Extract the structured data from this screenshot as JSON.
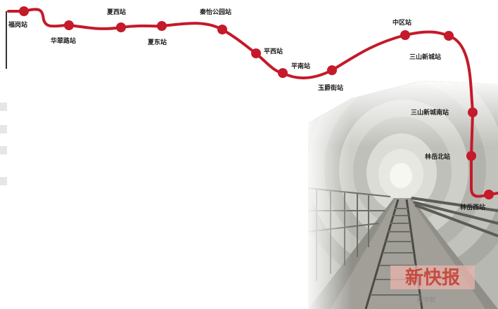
{
  "route": {
    "line_color": "#c41a2a",
    "stations": [
      {
        "id": "s1",
        "name": "福岗站"
      },
      {
        "id": "s2",
        "name": "华翠路站"
      },
      {
        "id": "s3",
        "name": "夏西站"
      },
      {
        "id": "s4",
        "name": "夏东站"
      },
      {
        "id": "s5",
        "name": "秦怡公园站"
      },
      {
        "id": "s6",
        "name": "平西站"
      },
      {
        "id": "s7",
        "name": "平南站"
      },
      {
        "id": "s8",
        "name": "玉爵街站"
      },
      {
        "id": "s9",
        "name": "中区站"
      },
      {
        "id": "s10",
        "name": "三山新城站"
      },
      {
        "id": "s11",
        "name": "三山新城南站"
      },
      {
        "id": "s12",
        "name": "林岳北站"
      },
      {
        "id": "s13",
        "name": "林岳西站"
      }
    ]
  },
  "photo": {
    "subject": "tunnel-with-track",
    "logo_text": "新快报",
    "caption": "郑宇航"
  }
}
